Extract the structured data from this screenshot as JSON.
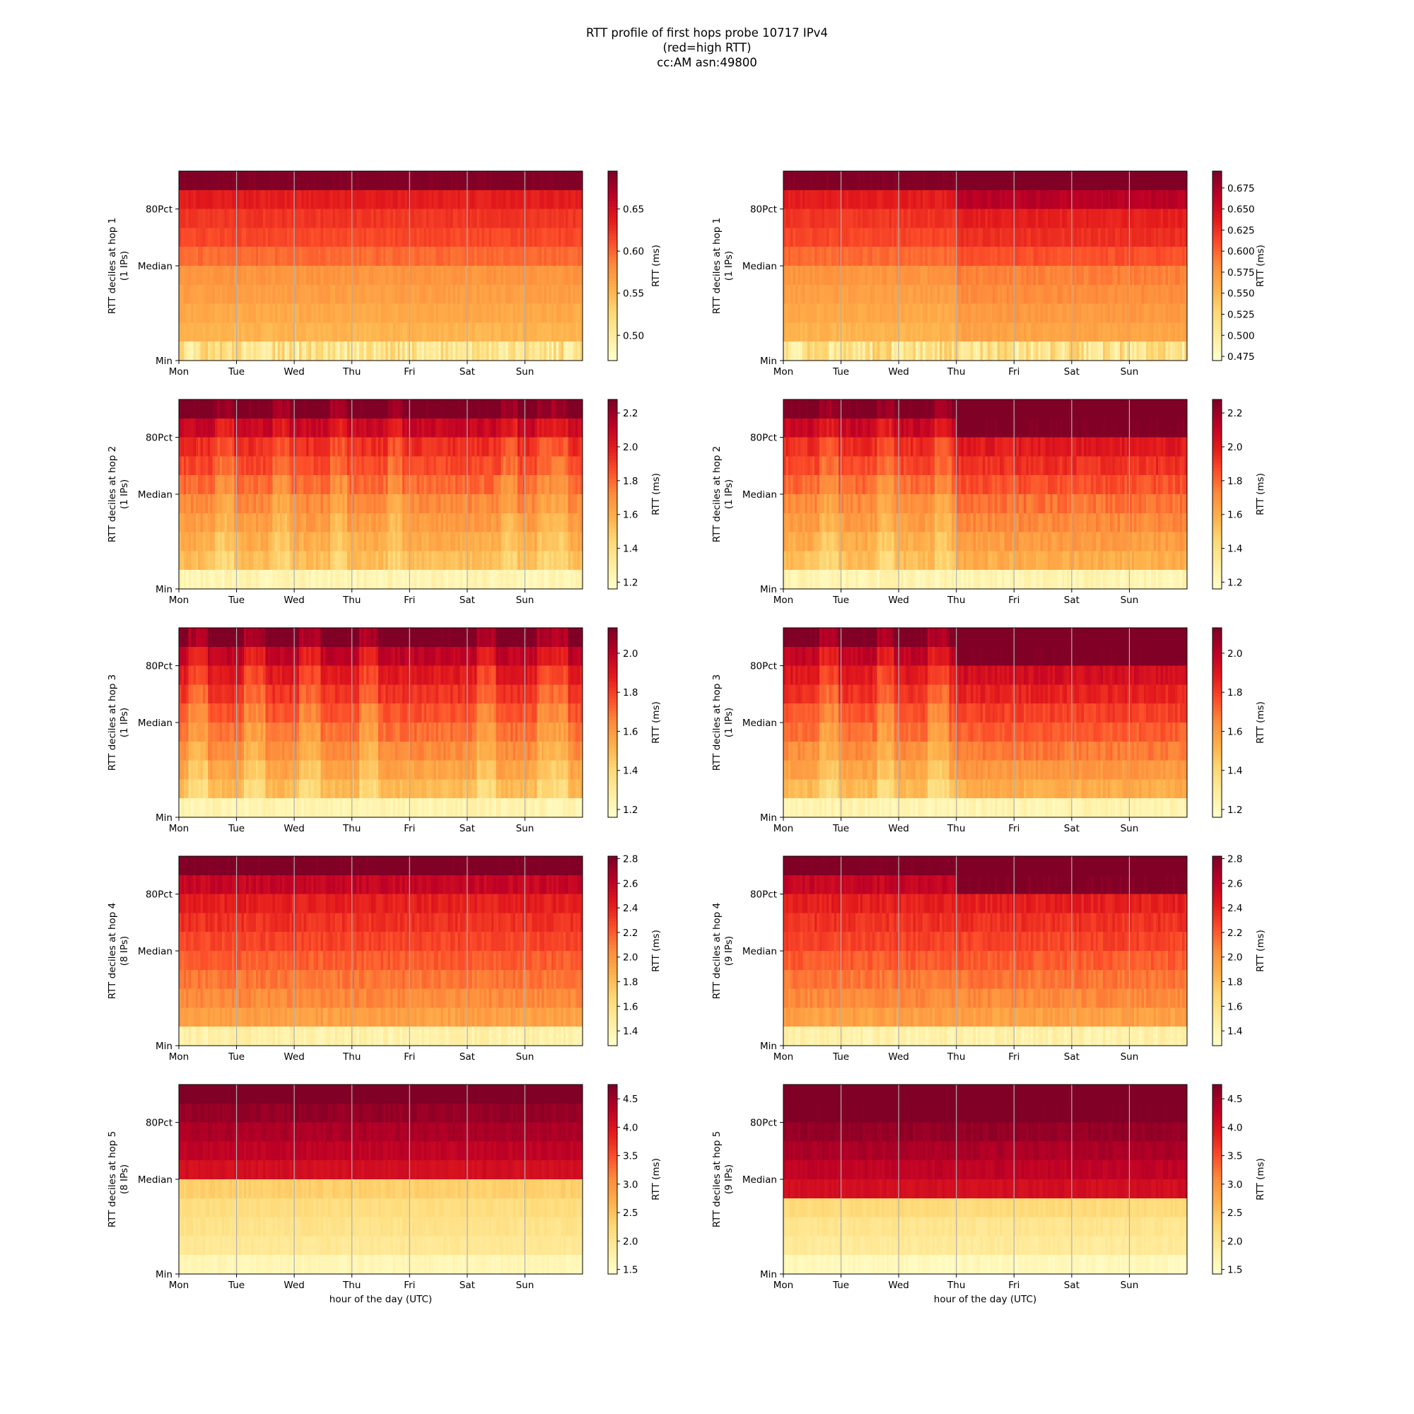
{
  "figure": {
    "title_lines": [
      "RTT profile of first hops probe 10717 IPv4",
      "(red=high RTT)",
      "cc:AM asn:49800"
    ],
    "colormap": "YlOrRd",
    "x_tick_labels": [
      "Mon",
      "Tue",
      "Wed",
      "Thu",
      "Fri",
      "Sat",
      "Sun"
    ],
    "x_axis_label": "hour of the day (UTC)",
    "y_tick_labels": [
      "80Pct",
      "Median",
      "Min"
    ],
    "colorbar_label": "RTT (ms)",
    "grid": "vertical lines at day boundaries"
  },
  "chart_data": [
    {
      "type": "heatmap",
      "hop": 1,
      "column": "left",
      "ylabel_line1": "RTT deciles at hop 1",
      "ylabel_line2": "(1 IPs)",
      "xlabel": "",
      "colorbar": {
        "min": 0.47,
        "max": 0.695,
        "ticks": [
          0.5,
          0.55,
          0.6,
          0.65
        ],
        "tick_labels": [
          "0.50",
          "0.55",
          "0.60",
          "0.65"
        ]
      },
      "decile_rtt_ms": [
        0.5,
        0.545,
        0.553,
        0.561,
        0.569,
        0.576,
        0.598,
        0.615,
        0.624,
        0.638,
        0.695
      ],
      "noise_ms": 0.006,
      "min_row_noise_ms": 0.03,
      "segments": []
    },
    {
      "type": "heatmap",
      "hop": 1,
      "column": "right",
      "ylabel_line1": "RTT deciles at hop 1",
      "ylabel_line2": "(1 IPs)",
      "xlabel": "",
      "colorbar": {
        "min": 0.47,
        "max": 0.695,
        "ticks": [
          0.475,
          0.5,
          0.525,
          0.55,
          0.575,
          0.6,
          0.625,
          0.65,
          0.675
        ],
        "tick_labels": [
          "0.475",
          "0.500",
          "0.525",
          "0.550",
          "0.575",
          "0.600",
          "0.625",
          "0.650",
          "0.675"
        ]
      },
      "decile_rtt_ms": [
        0.5,
        0.545,
        0.553,
        0.561,
        0.569,
        0.576,
        0.598,
        0.615,
        0.624,
        0.638,
        0.695
      ],
      "noise_ms": 0.006,
      "min_row_noise_ms": 0.03,
      "segments": [
        {
          "from_day": 3.0,
          "to_day": 7.0,
          "shift_ms": 0.012,
          "upper_rows_shift_ms": 0.03
        }
      ]
    },
    {
      "type": "heatmap",
      "hop": 2,
      "column": "left",
      "ylabel_line1": "RTT deciles at hop 2",
      "ylabel_line2": "(1 IPs)",
      "xlabel": "",
      "colorbar": {
        "min": 1.16,
        "max": 2.28,
        "ticks": [
          1.2,
          1.4,
          1.6,
          1.8,
          2.0,
          2.2
        ],
        "tick_labels": [
          "1.2",
          "1.4",
          "1.6",
          "1.8",
          "2.0",
          "2.2"
        ]
      },
      "decile_rtt_ms": [
        1.22,
        1.48,
        1.54,
        1.6,
        1.66,
        1.72,
        1.8,
        1.88,
        1.95,
        2.1,
        2.3
      ],
      "noise_ms": 0.05,
      "min_row_noise_ms": 0.05,
      "segments": [
        {
          "from_day": 0.6,
          "to_day": 0.95,
          "shift_ms": -0.1
        },
        {
          "from_day": 1.6,
          "to_day": 1.9,
          "shift_ms": -0.1
        },
        {
          "from_day": 2.6,
          "to_day": 2.9,
          "shift_ms": -0.1
        },
        {
          "from_day": 3.6,
          "to_day": 3.85,
          "shift_ms": -0.1
        },
        {
          "from_day": 5.55,
          "to_day": 5.85,
          "shift_ms": -0.1
        },
        {
          "from_day": 6.2,
          "to_day": 6.75,
          "shift_ms": -0.1
        }
      ]
    },
    {
      "type": "heatmap",
      "hop": 2,
      "column": "right",
      "ylabel_line1": "RTT deciles at hop 2",
      "ylabel_line2": "(1 IPs)",
      "xlabel": "",
      "colorbar": {
        "min": 1.16,
        "max": 2.28,
        "ticks": [
          1.2,
          1.4,
          1.6,
          1.8,
          2.0,
          2.2
        ],
        "tick_labels": [
          "1.2",
          "1.4",
          "1.6",
          "1.8",
          "2.0",
          "2.2"
        ]
      },
      "decile_rtt_ms": [
        1.22,
        1.48,
        1.54,
        1.6,
        1.66,
        1.72,
        1.8,
        1.88,
        1.95,
        2.1,
        2.3
      ],
      "noise_ms": 0.05,
      "min_row_noise_ms": 0.05,
      "segments": [
        {
          "from_day": 0.6,
          "to_day": 0.95,
          "shift_ms": -0.1
        },
        {
          "from_day": 1.6,
          "to_day": 1.9,
          "shift_ms": -0.1
        },
        {
          "from_day": 2.6,
          "to_day": 2.9,
          "shift_ms": -0.1
        },
        {
          "from_day": 3.0,
          "to_day": 7.0,
          "shift_ms": 0.06,
          "upper_rows_shift_ms": 0.2
        }
      ]
    },
    {
      "type": "heatmap",
      "hop": 3,
      "column": "left",
      "ylabel_line1": "RTT deciles at hop 3",
      "ylabel_line2": "(1 IPs)",
      "xlabel": "",
      "colorbar": {
        "min": 1.16,
        "max": 2.13,
        "ticks": [
          1.2,
          1.4,
          1.6,
          1.8,
          2.0
        ],
        "tick_labels": [
          "1.2",
          "1.4",
          "1.6",
          "1.8",
          "2.0"
        ]
      },
      "decile_rtt_ms": [
        1.22,
        1.43,
        1.5,
        1.57,
        1.64,
        1.7,
        1.76,
        1.83,
        1.9,
        2.0,
        2.15
      ],
      "noise_ms": 0.04,
      "min_row_noise_ms": 0.04,
      "segments": [
        {
          "from_day": 0.15,
          "to_day": 0.5,
          "shift_ms": -0.12
        },
        {
          "from_day": 1.1,
          "to_day": 1.5,
          "shift_ms": -0.12
        },
        {
          "from_day": 2.05,
          "to_day": 2.45,
          "shift_ms": -0.12
        },
        {
          "from_day": 3.1,
          "to_day": 3.45,
          "shift_ms": -0.12
        },
        {
          "from_day": 5.15,
          "to_day": 5.5,
          "shift_ms": -0.12
        },
        {
          "from_day": 6.2,
          "to_day": 6.75,
          "shift_ms": -0.12
        }
      ]
    },
    {
      "type": "heatmap",
      "hop": 3,
      "column": "right",
      "ylabel_line1": "RTT deciles at hop 3",
      "ylabel_line2": "(1 IPs)",
      "xlabel": "",
      "colorbar": {
        "min": 1.16,
        "max": 2.13,
        "ticks": [
          1.2,
          1.4,
          1.6,
          1.8,
          2.0
        ],
        "tick_labels": [
          "1.2",
          "1.4",
          "1.6",
          "1.8",
          "2.0"
        ]
      },
      "decile_rtt_ms": [
        1.22,
        1.43,
        1.5,
        1.57,
        1.64,
        1.7,
        1.76,
        1.83,
        1.9,
        2.0,
        2.15
      ],
      "noise_ms": 0.04,
      "min_row_noise_ms": 0.04,
      "segments": [
        {
          "from_day": 0.6,
          "to_day": 0.95,
          "shift_ms": -0.12
        },
        {
          "from_day": 1.6,
          "to_day": 1.9,
          "shift_ms": -0.12
        },
        {
          "from_day": 2.5,
          "to_day": 2.85,
          "shift_ms": -0.12
        },
        {
          "from_day": 3.0,
          "to_day": 7.0,
          "shift_ms": 0.04,
          "upper_rows_shift_ms": 0.15
        }
      ]
    },
    {
      "type": "heatmap",
      "hop": 4,
      "column": "left",
      "ylabel_line1": "RTT deciles at hop 4",
      "ylabel_line2": "(8 IPs)",
      "xlabel": "",
      "colorbar": {
        "min": 1.28,
        "max": 2.82,
        "ticks": [
          1.4,
          1.6,
          1.8,
          2.0,
          2.2,
          2.4,
          2.6,
          2.8
        ],
        "tick_labels": [
          "1.4",
          "1.6",
          "1.8",
          "2.0",
          "2.2",
          "2.4",
          "2.6",
          "2.8"
        ]
      },
      "decile_rtt_ms": [
        1.4,
        1.85,
        1.95,
        2.05,
        2.12,
        2.2,
        2.28,
        2.35,
        2.42,
        2.58,
        2.85
      ],
      "noise_ms": 0.06,
      "min_row_noise_ms": 0.07,
      "segments": []
    },
    {
      "type": "heatmap",
      "hop": 4,
      "column": "right",
      "ylabel_line1": "RTT deciles at hop 4",
      "ylabel_line2": "(9 IPs)",
      "xlabel": "",
      "colorbar": {
        "min": 1.28,
        "max": 2.82,
        "ticks": [
          1.4,
          1.6,
          1.8,
          2.0,
          2.2,
          2.4,
          2.6,
          2.8
        ],
        "tick_labels": [
          "1.4",
          "1.6",
          "1.8",
          "2.0",
          "2.2",
          "2.4",
          "2.6",
          "2.8"
        ]
      },
      "decile_rtt_ms": [
        1.4,
        1.85,
        1.95,
        2.05,
        2.12,
        2.2,
        2.28,
        2.35,
        2.42,
        2.58,
        2.85
      ],
      "noise_ms": 0.06,
      "min_row_noise_ms": 0.07,
      "segments": [
        {
          "from_day": 3.0,
          "to_day": 7.0,
          "shift_ms": 0.0,
          "upper_rows_shift_ms": 0.25
        }
      ]
    },
    {
      "type": "heatmap",
      "hop": 5,
      "column": "left",
      "ylabel_line1": "RTT deciles at hop 5",
      "ylabel_line2": "(8 IPs)",
      "xlabel": "hour of the day (UTC)",
      "colorbar": {
        "min": 1.42,
        "max": 4.75,
        "ticks": [
          1.5,
          2.0,
          2.5,
          3.0,
          3.5,
          4.0,
          4.5
        ],
        "tick_labels": [
          "1.5",
          "2.0",
          "2.5",
          "3.0",
          "3.5",
          "4.0",
          "4.5"
        ]
      },
      "decile_rtt_ms": [
        1.6,
        1.85,
        1.95,
        2.05,
        2.15,
        2.35,
        4.1,
        4.3,
        4.45,
        4.6,
        4.85
      ],
      "noise_ms": 0.08,
      "min_row_noise_ms": 0.08,
      "segments": []
    },
    {
      "type": "heatmap",
      "hop": 5,
      "column": "right",
      "ylabel_line1": "RTT deciles at hop 5",
      "ylabel_line2": "(9 IPs)",
      "xlabel": "hour of the day (UTC)",
      "colorbar": {
        "min": 1.42,
        "max": 4.75,
        "ticks": [
          1.5,
          2.0,
          2.5,
          3.0,
          3.5,
          4.0,
          4.5
        ],
        "tick_labels": [
          "1.5",
          "2.0",
          "2.5",
          "3.0",
          "3.5",
          "4.0",
          "4.5"
        ]
      },
      "decile_rtt_ms": [
        1.55,
        1.8,
        1.9,
        2.0,
        2.2,
        4.1,
        4.3,
        4.45,
        4.6,
        4.8,
        4.95
      ],
      "noise_ms": 0.08,
      "min_row_noise_ms": 0.08,
      "segments": []
    }
  ]
}
